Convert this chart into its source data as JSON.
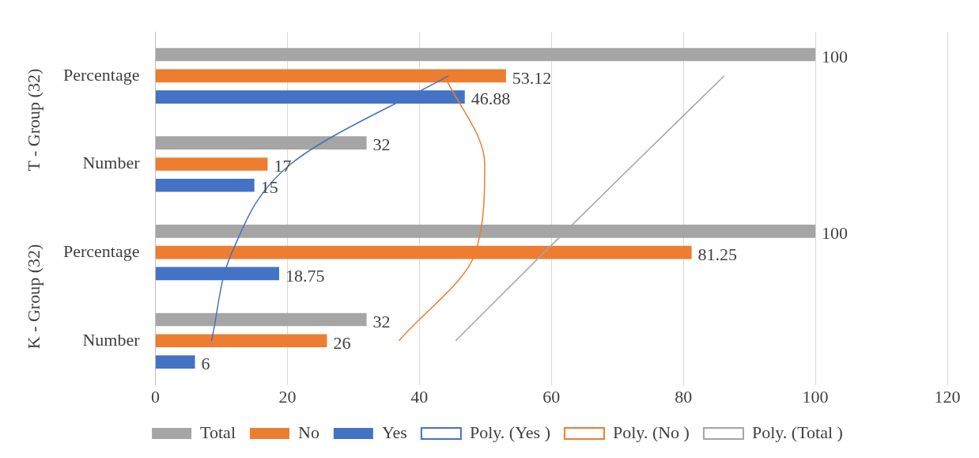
{
  "chart_data": {
    "type": "bar",
    "orientation": "horizontal",
    "categories": [
      "Percentage",
      "Number",
      "Percentage",
      "Number"
    ],
    "series": [
      {
        "name": "Total",
        "color": "#a5a5a5",
        "values": [
          100,
          32,
          100,
          32
        ],
        "value_labels": [
          "100",
          "32",
          "100",
          "32"
        ]
      },
      {
        "name": "No",
        "color": "#ed7d31",
        "values": [
          53.12,
          17,
          81.25,
          26
        ],
        "value_labels": [
          "53.12",
          "17",
          "81.25",
          "26"
        ]
      },
      {
        "name": "Yes",
        "color": "#4472c4",
        "values": [
          46.88,
          15,
          18.75,
          6
        ],
        "value_labels": [
          "46.88",
          "15",
          "18.75",
          "6"
        ]
      },
      {
        "name": "Poly. (Yes )",
        "type": "line",
        "color": "#4472c4",
        "values": [
          44.4,
          20.5,
          11.6,
          8.5
        ]
      },
      {
        "name": "Poly. (No )",
        "type": "line",
        "color": "#ed7d31",
        "values": [
          43.8,
          49.9,
          48.5,
          36.9
        ]
      },
      {
        "name": "Poly. (Total )",
        "type": "line",
        "color": "#a5a5a5",
        "values": [
          86.2,
          72.5,
          58.9,
          45.5
        ]
      }
    ],
    "annotations": [
      "T - Group (32)",
      "K - Group (32)"
    ],
    "xlim": [
      0,
      120
    ],
    "xticks": [
      0,
      20,
      40,
      60,
      80,
      100,
      120
    ],
    "grid": "x",
    "legend": "bottom",
    "marker": "none",
    "line_style": "solid"
  }
}
